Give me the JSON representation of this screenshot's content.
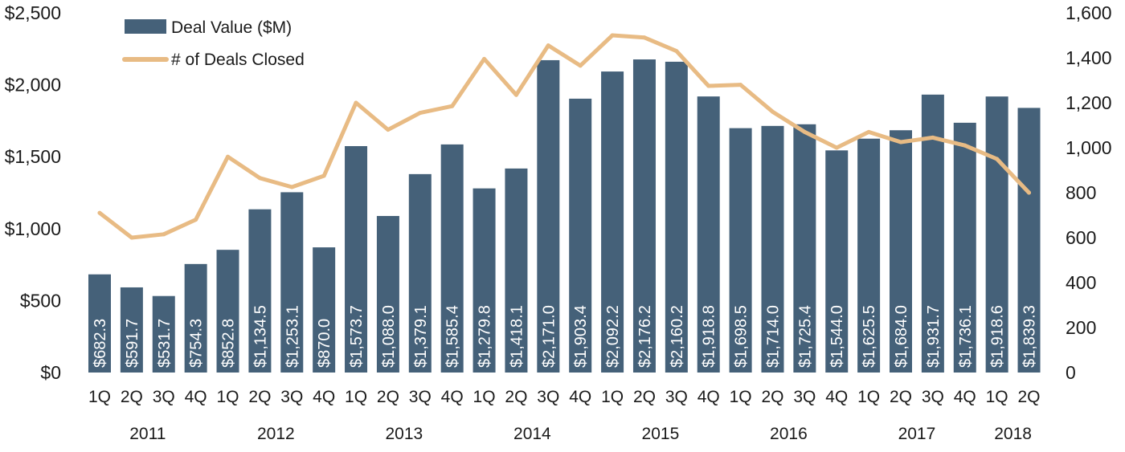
{
  "chart_data": {
    "type": "bar",
    "categories": [
      "1Q",
      "2Q",
      "3Q",
      "4Q",
      "1Q",
      "2Q",
      "3Q",
      "4Q",
      "1Q",
      "2Q",
      "3Q",
      "4Q",
      "1Q",
      "2Q",
      "3Q",
      "4Q",
      "1Q",
      "2Q",
      "3Q",
      "4Q",
      "1Q",
      "2Q",
      "3Q",
      "4Q",
      "1Q",
      "2Q",
      "3Q",
      "4Q",
      "1Q",
      "2Q"
    ],
    "year_groups": [
      {
        "label": "2011",
        "start": 0,
        "end": 3
      },
      {
        "label": "2012",
        "start": 4,
        "end": 7
      },
      {
        "label": "2013",
        "start": 8,
        "end": 11
      },
      {
        "label": "2014",
        "start": 12,
        "end": 15
      },
      {
        "label": "2015",
        "start": 16,
        "end": 19
      },
      {
        "label": "2016",
        "start": 20,
        "end": 23
      },
      {
        "label": "2017",
        "start": 24,
        "end": 27
      },
      {
        "label": "2018",
        "start": 28,
        "end": 29
      }
    ],
    "series": [
      {
        "name": "Deal Value ($M)",
        "kind": "bar",
        "axis": "left",
        "color": "#456179",
        "values": [
          682.3,
          591.7,
          531.7,
          754.3,
          852.8,
          1134.5,
          1253.1,
          870.0,
          1573.7,
          1088.0,
          1379.1,
          1585.4,
          1279.8,
          1418.1,
          2171.0,
          1903.4,
          2092.2,
          2176.2,
          2160.2,
          1918.8,
          1698.5,
          1714.0,
          1725.4,
          1544.0,
          1625.5,
          1684.0,
          1931.7,
          1736.1,
          1918.6,
          1839.3
        ],
        "labels": [
          "$682.3",
          "$591.7",
          "$531.7",
          "$754.3",
          "$852.8",
          "$1,134.5",
          "$1,253.1",
          "$870.0",
          "$1,573.7",
          "$1,088.0",
          "$1,379.1",
          "$1,585.4",
          "$1,279.8",
          "$1,418.1",
          "$2,171.0",
          "$1,903.4",
          "$2,092.2",
          "$2,176.2",
          "$2,160.2",
          "$1,918.8",
          "$1,698.5",
          "$1,714.0",
          "$1,725.4",
          "$1,544.0",
          "$1,625.5",
          "$1,684.0",
          "$1,931.7",
          "$1,736.1",
          "$1,918.6",
          "$1,839.3"
        ]
      },
      {
        "name": "# of Deals Closed",
        "kind": "line",
        "axis": "right",
        "color": "#E8BB84",
        "values": [
          710,
          600,
          615,
          680,
          960,
          865,
          825,
          875,
          1200,
          1080,
          1155,
          1185,
          1395,
          1235,
          1455,
          1365,
          1500,
          1490,
          1430,
          1275,
          1280,
          1160,
          1070,
          1000,
          1070,
          1025,
          1045,
          1010,
          950,
          800
        ]
      }
    ],
    "y_left": {
      "min": 0,
      "max": 2500,
      "ticks": [
        "$0",
        "$500",
        "$1,000",
        "$1,500",
        "$2,000",
        "$2,500"
      ],
      "tick_values": [
        0,
        500,
        1000,
        1500,
        2000,
        2500
      ]
    },
    "y_right": {
      "min": 0,
      "max": 1600,
      "ticks": [
        "0",
        "200",
        "400",
        "600",
        "800",
        "1,000",
        "1,200",
        "1,400",
        "1,600"
      ],
      "tick_values": [
        0,
        200,
        400,
        600,
        800,
        1000,
        1200,
        1400,
        1600
      ]
    },
    "grid": false,
    "legend": "top-left"
  }
}
